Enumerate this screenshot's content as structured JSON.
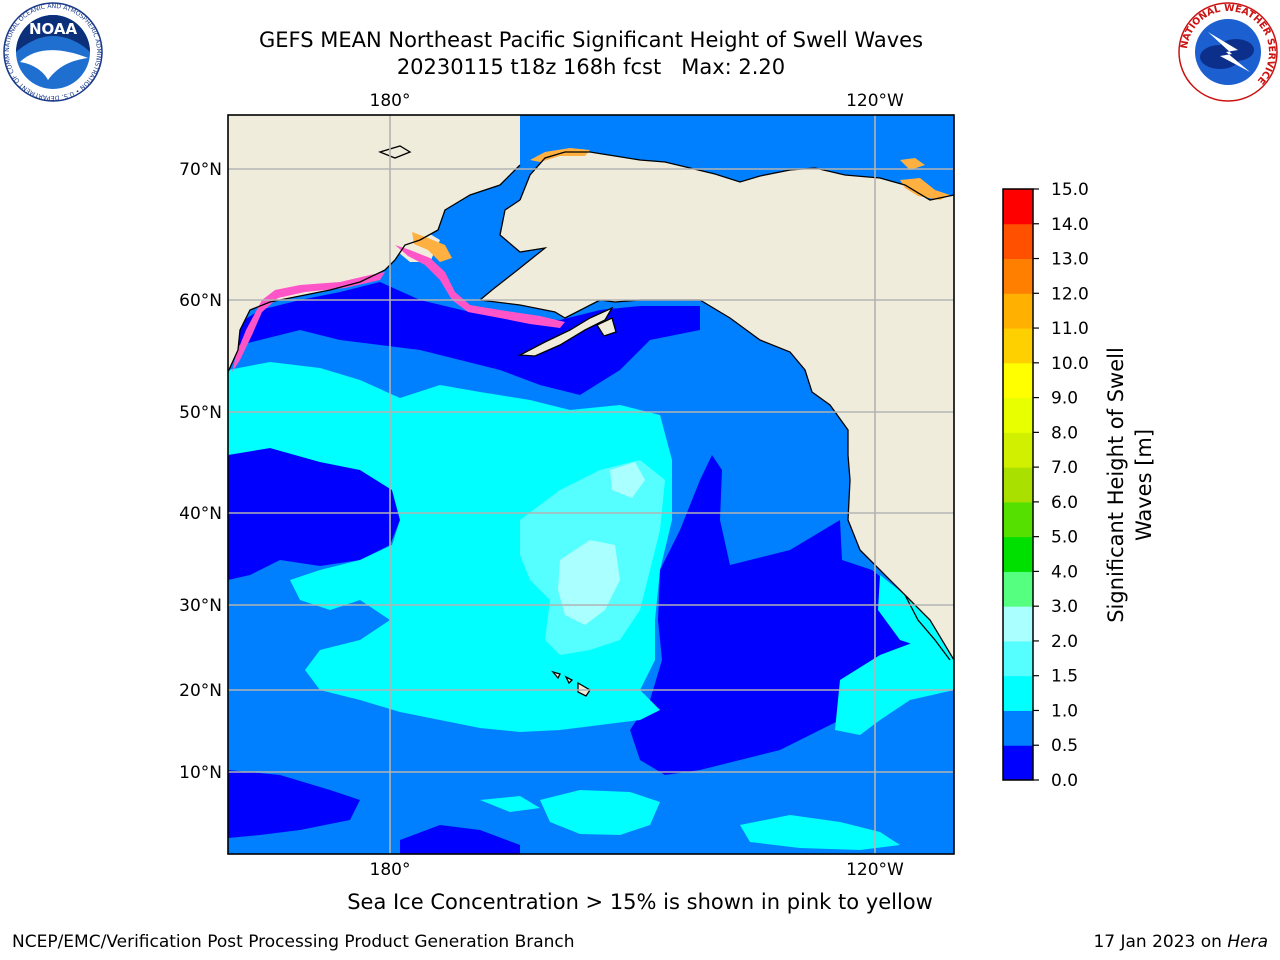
{
  "title": {
    "line1": "GEFS MEAN Northeast Pacific Significant Height of Swell Waves",
    "line2": "20230115 t18z 168h fcst   Max: 2.20"
  },
  "map": {
    "lon_labels_top": [
      "180°",
      "120°W"
    ],
    "lon_labels_bottom": [
      "180°",
      "120°W"
    ],
    "lat_labels": [
      "70°N",
      "60°N",
      "50°N",
      "40°N",
      "30°N",
      "20°N",
      "10°N"
    ],
    "colors": {
      "land": "#efecdc",
      "ocean_0_05": "#0000ff",
      "ocean_05_1": "#0080ff",
      "ocean_1_15": "#00ffff",
      "ocean_15_2": "#55ffff",
      "ocean_2_3": "#aaffff",
      "ice_pink": "#ff55c8",
      "ice_orange": "#ffb040",
      "grid": "#b3b3b3",
      "coast": "#000000"
    }
  },
  "colorbar": {
    "label_line1": "Significant Height of Swell",
    "label_line2": "Waves [m]",
    "ticks": [
      "0.0",
      "0.5",
      "1.0",
      "1.5",
      "2.0",
      "3.0",
      "4.0",
      "5.0",
      "6.0",
      "7.0",
      "8.0",
      "9.0",
      "10.0",
      "11.0",
      "12.0",
      "13.0",
      "14.0",
      "15.0"
    ],
    "colors": [
      "#0000ff",
      "#0080ff",
      "#00ffff",
      "#55ffff",
      "#aaffff",
      "#55ff80",
      "#00e000",
      "#55e000",
      "#aae000",
      "#d0f000",
      "#e8ff00",
      "#ffff00",
      "#ffd000",
      "#ffb000",
      "#ff8000",
      "#ff5000",
      "#ff0000"
    ]
  },
  "captions": {
    "ice_note": "Sea Ice Concentration > 15% is shown in pink to yellow",
    "footer_left": "NCEP/EMC/Verification Post Processing Product Generation Branch",
    "footer_right_prefix": "17 Jan 2023 on ",
    "footer_right_host": "Hera"
  },
  "logos": {
    "noaa_icon": "noaa-logo-icon",
    "nws_icon": "nws-logo-icon",
    "noaa_text": "NOAA",
    "noaa_ring": "NATIONAL OCEANIC AND ATMOSPHERIC ADMINISTRATION • U.S. DEPARTMENT OF COMMERCE",
    "nws_ring": "NATIONAL WEATHER SERVICE"
  }
}
